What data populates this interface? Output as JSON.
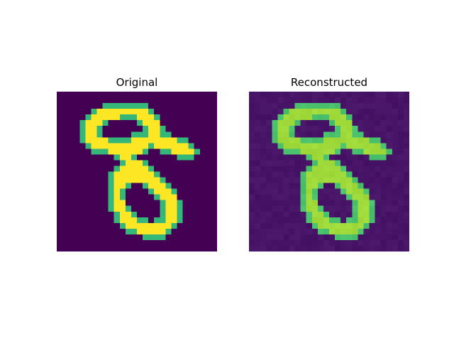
{
  "panels": [
    {
      "title": "Original"
    },
    {
      "title": "Reconstructed"
    }
  ],
  "colors": {
    "original_background": "#440154",
    "original_stroke": "#fde725",
    "original_edge": "#35b779",
    "reconstructed_background": "#481467",
    "reconstructed_stroke": "#9fda3a",
    "reconstructed_edge": "#4ac16d"
  },
  "colormap": "viridis",
  "image_grid": [
    28,
    28
  ]
}
